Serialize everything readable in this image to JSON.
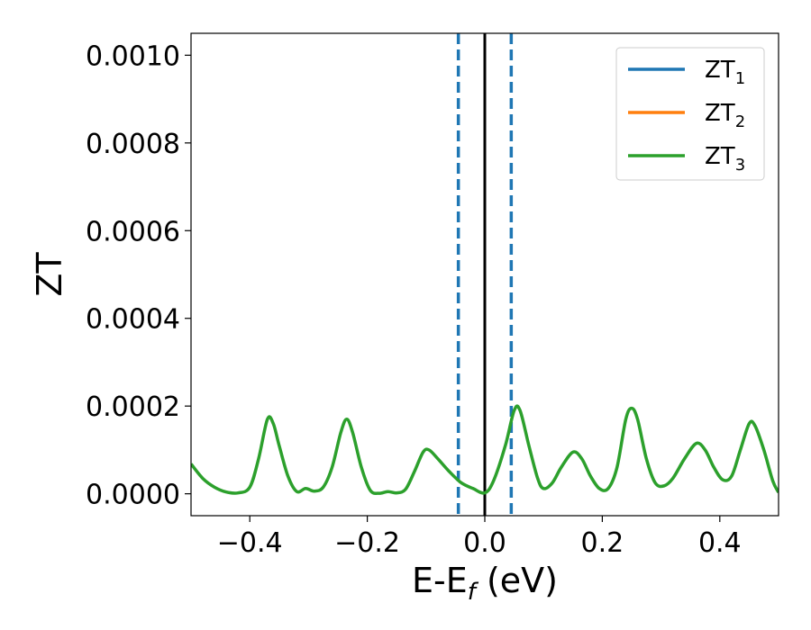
{
  "chart_data": {
    "type": "line",
    "xlabel": "E-E",
    "xlabel_sub": "f",
    "xlabel_unit": " (eV)",
    "ylabel": "ZT",
    "xlim": [
      -0.5,
      0.5
    ],
    "ylim": [
      -5e-05,
      0.00105
    ],
    "x_ticks": [
      -0.4,
      -0.2,
      0.0,
      0.2,
      0.4
    ],
    "x_tick_labels": [
      "−0.4",
      "−0.2",
      "0.0",
      "0.2",
      "0.4"
    ],
    "y_ticks": [
      0.0,
      0.0002,
      0.0004,
      0.0006,
      0.0008,
      0.001
    ],
    "y_tick_labels": [
      "0.0000",
      "0.0002",
      "0.0004",
      "0.0006",
      "0.0008",
      "0.0010"
    ],
    "grid": false,
    "legend_position": "top-right",
    "vertical_lines": [
      {
        "x": -0.045,
        "style": "dashed",
        "color": "#1f77b4"
      },
      {
        "x": 0.0,
        "style": "solid",
        "color": "#000000"
      },
      {
        "x": 0.045,
        "style": "dashed",
        "color": "#1f77b4"
      }
    ],
    "series": [
      {
        "name": "ZT",
        "sub": "1",
        "color": "#1f77b4",
        "points": []
      },
      {
        "name": "ZT",
        "sub": "2",
        "color": "#ff7f0e",
        "points": []
      },
      {
        "name": "ZT",
        "sub": "3",
        "color": "#2ca02c",
        "points": [
          [
            -0.5,
            6.8e-05
          ],
          [
            -0.48,
            3.5e-05
          ],
          [
            -0.46,
            1.5e-05
          ],
          [
            -0.44,
            4e-06
          ],
          [
            -0.42,
            2e-06
          ],
          [
            -0.4,
            1.5e-05
          ],
          [
            -0.385,
            8e-05
          ],
          [
            -0.37,
            0.00017
          ],
          [
            -0.36,
            0.00016
          ],
          [
            -0.35,
            0.00011
          ],
          [
            -0.335,
            4e-05
          ],
          [
            -0.32,
            5e-06
          ],
          [
            -0.305,
            1.2e-05
          ],
          [
            -0.29,
            6e-06
          ],
          [
            -0.275,
            1.5e-05
          ],
          [
            -0.26,
            6e-05
          ],
          [
            -0.245,
            0.00014
          ],
          [
            -0.235,
            0.00017
          ],
          [
            -0.225,
            0.00014
          ],
          [
            -0.21,
            6e-05
          ],
          [
            -0.195,
            8e-06
          ],
          [
            -0.18,
            1e-06
          ],
          [
            -0.165,
            5e-06
          ],
          [
            -0.15,
            2e-06
          ],
          [
            -0.135,
            1e-05
          ],
          [
            -0.12,
            5e-05
          ],
          [
            -0.105,
            9.5e-05
          ],
          [
            -0.095,
            0.0001
          ],
          [
            -0.08,
            8e-05
          ],
          [
            -0.06,
            5e-05
          ],
          [
            -0.04,
            2.5e-05
          ],
          [
            -0.02,
            1.2e-05
          ],
          [
            0.0,
            2e-06
          ],
          [
            0.015,
            3e-05
          ],
          [
            0.035,
            0.00011
          ],
          [
            0.05,
            0.00019
          ],
          [
            0.06,
            0.00019
          ],
          [
            0.075,
            0.00011
          ],
          [
            0.09,
            3.5e-05
          ],
          [
            0.1,
            1.2e-05
          ],
          [
            0.115,
            2.5e-05
          ],
          [
            0.13,
            6e-05
          ],
          [
            0.15,
            9.5e-05
          ],
          [
            0.165,
            8e-05
          ],
          [
            0.18,
            4e-05
          ],
          [
            0.195,
            1.2e-05
          ],
          [
            0.21,
            1.2e-05
          ],
          [
            0.225,
            6e-05
          ],
          [
            0.24,
            0.00017
          ],
          [
            0.25,
            0.000195
          ],
          [
            0.26,
            0.00017
          ],
          [
            0.275,
            8e-05
          ],
          [
            0.29,
            2.5e-05
          ],
          [
            0.305,
            1.8e-05
          ],
          [
            0.32,
            3.5e-05
          ],
          [
            0.34,
            8e-05
          ],
          [
            0.36,
            0.000115
          ],
          [
            0.375,
            0.0001
          ],
          [
            0.39,
            6e-05
          ],
          [
            0.405,
            3.2e-05
          ],
          [
            0.42,
            4e-05
          ],
          [
            0.435,
            0.0001
          ],
          [
            0.45,
            0.00016
          ],
          [
            0.46,
            0.000155
          ],
          [
            0.475,
            0.0001
          ],
          [
            0.49,
            3e-05
          ],
          [
            0.5,
            3e-06
          ]
        ]
      }
    ]
  }
}
